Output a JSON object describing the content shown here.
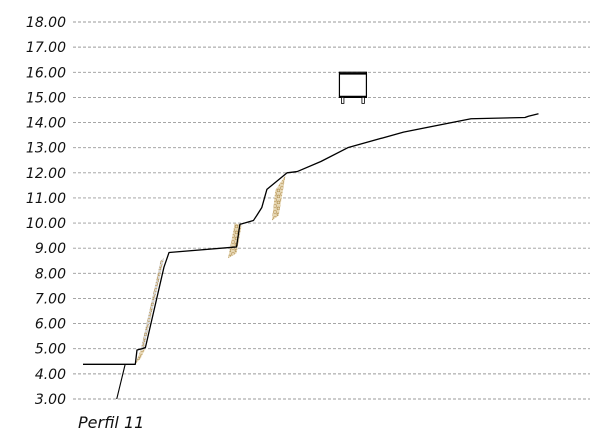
{
  "chart_data": {
    "type": "line",
    "title": "Perfil 11",
    "xlabel": "",
    "ylabel": "",
    "ylim": [
      3.0,
      18.0
    ],
    "grid": true,
    "yticks": [
      "3.00",
      "4.00",
      "5.00",
      "6.00",
      "7.00",
      "8.00",
      "9.00",
      "10.00",
      "11.00",
      "12.00",
      "13.00",
      "14.00",
      "15.00",
      "16.00",
      "17.00",
      "18.00"
    ],
    "series": [
      {
        "x": [
          0,
          31,
          32,
          35,
          37,
          48,
          51,
          91,
          93,
          101,
          103,
          106,
          109,
          121,
          127,
          141,
          157,
          190,
          230,
          262,
          264,
          270
        ],
        "y": [
          4.38,
          4.38,
          4.95,
          5.0,
          5.05,
          8.25,
          8.83,
          9.05,
          9.95,
          10.1,
          10.3,
          10.62,
          11.34,
          12.0,
          12.05,
          12.45,
          13.0,
          13.62,
          14.15,
          14.2,
          14.25,
          14.35
        ]
      }
    ],
    "datum_line_x": [
      25,
      20
    ],
    "datum_line_y": [
      4.38,
      3.0
    ],
    "rock_protection": [
      {
        "x": [
          31,
          34,
          37,
          34
        ],
        "y": [
          4.4,
          4.9,
          5.0,
          4.6
        ]
      },
      {
        "x": [
          34,
          36,
          48,
          46
        ],
        "y": [
          4.9,
          5.0,
          8.6,
          8.5
        ]
      },
      {
        "x": [
          86,
          90,
          94,
          91
        ],
        "y": [
          8.6,
          10.0,
          9.9,
          8.8
        ]
      },
      {
        "x": [
          112,
          114,
          120,
          116
        ],
        "y": [
          10.1,
          11.3,
          11.9,
          10.3
        ]
      }
    ],
    "structure": {
      "x": [
        152,
        168
      ],
      "y": [
        15.0,
        16.0
      ]
    }
  }
}
